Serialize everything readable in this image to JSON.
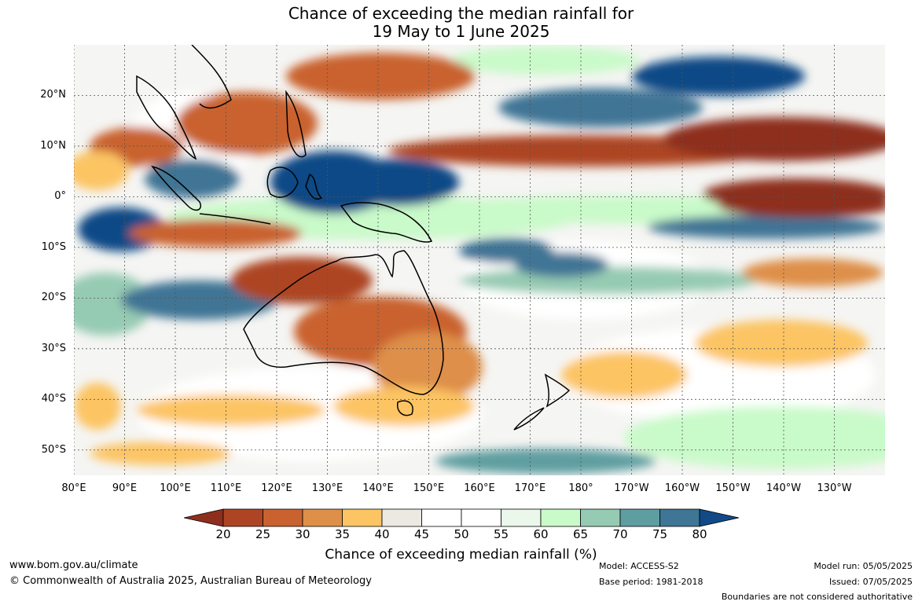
{
  "title_line1": "Chance of exceeding the median rainfall for",
  "title_line2": "19 May to 1 June 2025",
  "lat_labels": [
    "20°N",
    "10°N",
    "0°",
    "10°S",
    "20°S",
    "30°S",
    "40°S",
    "50°S"
  ],
  "lat_values": [
    20,
    10,
    0,
    -10,
    -20,
    -30,
    -40,
    -50
  ],
  "lon_labels": [
    "80°E",
    "90°E",
    "100°E",
    "110°E",
    "120°E",
    "130°E",
    "140°E",
    "150°E",
    "160°E",
    "170°E",
    "180°",
    "170°W",
    "160°W",
    "150°W",
    "140°W",
    "130°W"
  ],
  "lon_values": [
    80,
    90,
    100,
    110,
    120,
    130,
    140,
    150,
    160,
    170,
    180,
    190,
    200,
    210,
    220,
    230
  ],
  "map_extent": {
    "lon_min": 80,
    "lon_max": 240,
    "lat_min": -55,
    "lat_max": 30
  },
  "colorbar": {
    "ticks": [
      "20",
      "25",
      "30",
      "35",
      "40",
      "45",
      "50",
      "55",
      "60",
      "65",
      "70",
      "75",
      "80"
    ],
    "colors": [
      "#8e2f1d",
      "#ad4524",
      "#c9622f",
      "#de8f48",
      "#fcc463",
      "#ece9e3",
      "#ffffff",
      "#ffffff",
      "#eaf7ea",
      "#c9fac9",
      "#96cbb3",
      "#5f9ea0",
      "#3f7595",
      "#114a86"
    ],
    "label": "Chance of exceeding median rainfall (%)"
  },
  "footer": {
    "url": "www.bom.gov.au/climate",
    "copyright": "© Commonwealth of Australia 2025, Australian Bureau of Meteorology",
    "model": "Model: ACCESS-S2",
    "base_period": "Base period: 1981-2018",
    "model_run": "Model run: 05/05/2025",
    "issued": "Issued: 07/05/2025",
    "disclaimer": "Boundaries are not considered authoritative"
  }
}
